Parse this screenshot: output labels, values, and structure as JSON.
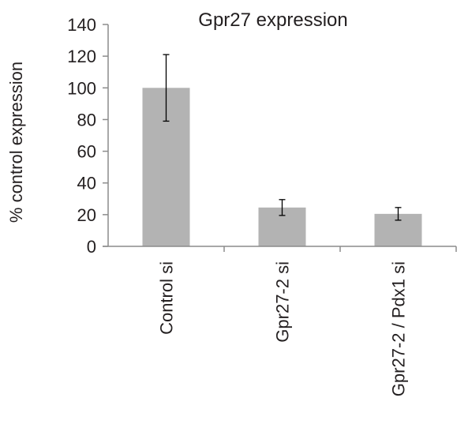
{
  "chart_data": {
    "type": "bar",
    "title": "Gpr27 expression",
    "xlabel": "",
    "ylabel": "% control expression",
    "ylim": [
      0,
      140
    ],
    "yticks": [
      0,
      20,
      40,
      60,
      80,
      100,
      120,
      140
    ],
    "categories": [
      "Control si",
      "Gpr27-2 si",
      "Gpr27-2 / Pdx1 si"
    ],
    "values": [
      100,
      24.5,
      20.5
    ],
    "errors": [
      21,
      5,
      4
    ],
    "grid": false,
    "legend": "none",
    "bar_color": "#b3b3b3",
    "axis_color": "#8c8c8c",
    "text_color": "#231f20"
  }
}
